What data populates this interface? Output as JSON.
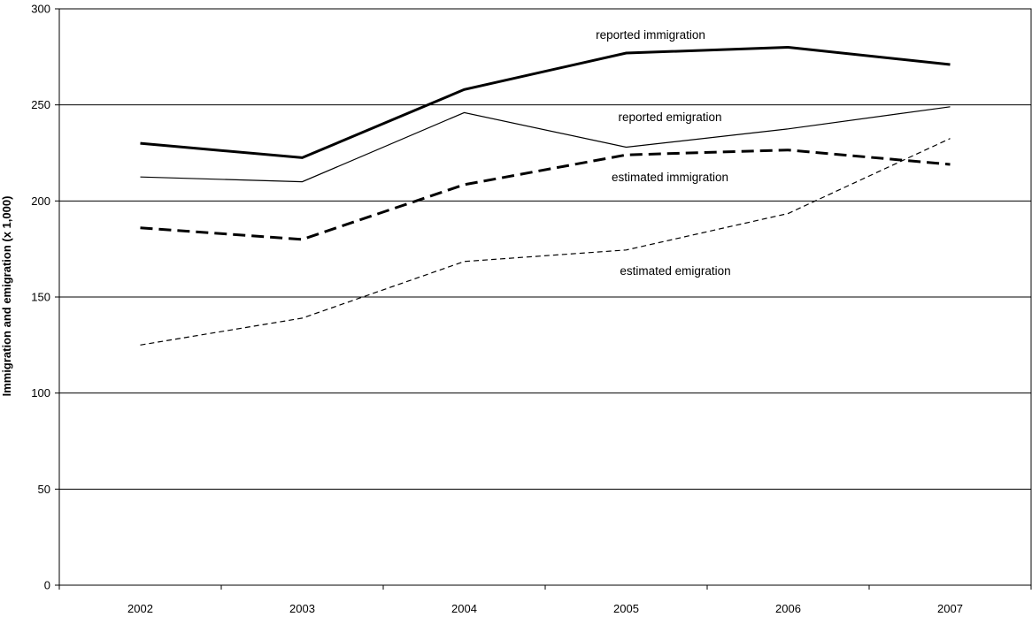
{
  "chart_data": {
    "type": "line",
    "title": "",
    "xlabel": "",
    "ylabel": "Immigration and emigration (x 1,000)",
    "x": [
      "2002",
      "2003",
      "2004",
      "2005",
      "2006",
      "2007"
    ],
    "ylim": [
      0,
      300
    ],
    "yticks": [
      "0",
      "50",
      "100",
      "150",
      "200",
      "250",
      "300"
    ],
    "grid": true,
    "legend": "none",
    "series": [
      {
        "name": "reported immigration",
        "values": [
          230,
          222.5,
          258,
          277,
          280,
          271
        ],
        "color": "#000000",
        "style": "solid-thick"
      },
      {
        "name": "reported emigration",
        "values": [
          212.5,
          210,
          246,
          228,
          237.5,
          249
        ],
        "color": "#000000",
        "style": "solid-thin"
      },
      {
        "name": "estimated immigration",
        "values": [
          186,
          180,
          208.5,
          224,
          226.5,
          219
        ],
        "color": "#000000",
        "style": "dashed-thick"
      },
      {
        "name": "estimated emigration",
        "values": [
          125,
          139,
          168.5,
          174.5,
          193.5,
          232.5
        ],
        "color": "#000000",
        "style": "dashed-thin"
      }
    ]
  }
}
